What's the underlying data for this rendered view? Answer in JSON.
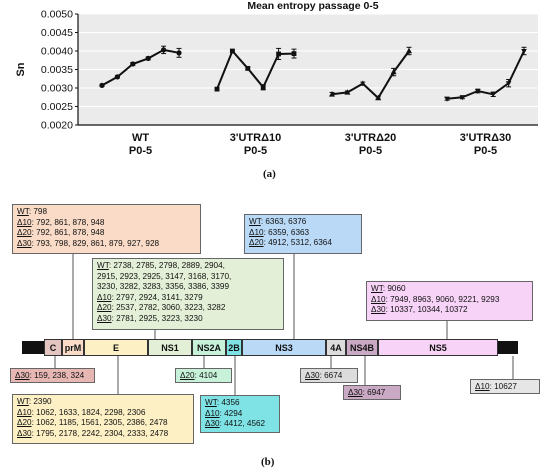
{
  "panel_a": {
    "caption": "(a)",
    "chart_data": {
      "type": "line",
      "title": "Mean entropy passage 0-5",
      "ylabel": "Sn",
      "xlabel": "",
      "ylim": [
        0.002,
        0.005
      ],
      "yticks": [
        "0.0020",
        "0.0025",
        "0.0030",
        "0.0035",
        "0.0040",
        "0.0045",
        "0.0050"
      ],
      "grid": true,
      "group_labels": [
        [
          "WT",
          "P0-5"
        ],
        [
          "3'UTRΔ10",
          "P0-5"
        ],
        [
          "3'UTRΔ20",
          "P0-5"
        ],
        [
          "3'UTRΔ30",
          "P0-5"
        ]
      ],
      "series": [
        {
          "name": "WT",
          "values": [
            0.00307,
            0.0033,
            0.00365,
            0.0038,
            0.00403,
            0.00395
          ],
          "err": [
            3e-05,
            3e-05,
            4e-05,
            4e-05,
            0.0001,
            0.00012
          ]
        },
        {
          "name": "3'UTRΔ10",
          "values": [
            0.00297,
            0.004,
            0.00353,
            0.00302,
            0.00392,
            0.00393
          ],
          "err": [
            3e-05,
            3e-05,
            4e-05,
            7e-05,
            0.00015,
            0.00012
          ]
        },
        {
          "name": "3'UTRΔ20",
          "values": [
            0.00283,
            0.00288,
            0.00312,
            0.00273,
            0.00343,
            0.004
          ],
          "err": [
            5e-05,
            4e-05,
            4e-05,
            3e-05,
            0.0001,
            0.0001
          ]
        },
        {
          "name": "3'UTRΔ30",
          "values": [
            0.00271,
            0.00275,
            0.00292,
            0.00283,
            0.00313,
            0.004
          ],
          "err": [
            4e-05,
            4e-05,
            5e-05,
            6e-05,
            0.0001,
            0.0001
          ]
        }
      ]
    }
  },
  "panel_b": {
    "caption": "(b)",
    "genome_segments": [
      "C",
      "prM",
      "E",
      "NS1",
      "NS2A",
      "2B",
      "NS3",
      "4A",
      "NS4B",
      "NS5"
    ],
    "boxes": {
      "box_prm": [
        [
          [
            "WT",
            ": 798"
          ]
        ],
        [
          [
            "Δ10",
            ": 792, 861, 878, 948"
          ]
        ],
        [
          [
            "Δ20",
            ": 792, 861, 878, 948"
          ]
        ],
        [
          [
            "Δ30",
            ": 793, 798, 829, 861, 879, 927, 928"
          ]
        ]
      ],
      "box_ns1": [
        [
          [
            "WT",
            ":  2738,  2785,  2798,  2889,  2904,"
          ]
        ],
        [
          [
            "",
            "2915,  2923,  2925,  3147,  3168,  3170,"
          ]
        ],
        [
          [
            "",
            "3230,  3282,  3283,  3356,  3386,  3399"
          ]
        ],
        [
          [
            "Δ10",
            ": 2797, 2924, 3141, 3279"
          ]
        ],
        [
          [
            "Δ20",
            ": 2537, 2782, 3060, 3223, 3282"
          ]
        ],
        [
          [
            "Δ30",
            ": 2781, 2925, 3223, 3230"
          ]
        ]
      ],
      "box_ns3": [
        [
          [
            "WT",
            ": 6363, 6376"
          ]
        ],
        [
          [
            "Δ10",
            ": 6359, 6363"
          ]
        ],
        [
          [
            "Δ20",
            ": 4912, 5312, 6364"
          ]
        ]
      ],
      "box_ns5": [
        [
          [
            "WT",
            ": 9060"
          ]
        ],
        [
          [
            "Δ10",
            ": 7949, 8963, 9060, 9221, 9293"
          ]
        ],
        [
          [
            "Δ30",
            ": 10337, 10344, 10372"
          ]
        ]
      ],
      "box_c": [
        [
          [
            "Δ30",
            ": 159, 238, 324"
          ]
        ]
      ],
      "box_e": [
        [
          [
            "WT",
            ": 2390"
          ]
        ],
        [
          [
            "Δ10",
            ": 1062, 1633, 1824, 2298, 2306"
          ]
        ],
        [
          [
            "Δ20",
            ": 1062, 1185, 1561, 2305, 2386, 2478"
          ]
        ],
        [
          [
            "Δ30",
            ": 1795, 2178, 2242, 2304, 2333, 2478"
          ]
        ]
      ],
      "box_ns2a": [
        [
          [
            "Δ20",
            ": 4104"
          ]
        ]
      ],
      "box_2b": [
        [
          [
            "WT",
            ": 4356"
          ]
        ],
        [
          [
            "Δ10",
            ": 4294"
          ]
        ],
        [
          [
            "Δ30",
            ": 4412, 4562"
          ]
        ]
      ],
      "box_4a": [
        [
          [
            "Δ30",
            ": 6674"
          ]
        ]
      ],
      "box_ns4b": [
        [
          [
            "Δ30",
            ": 6947"
          ]
        ]
      ],
      "box_utr": [
        [
          [
            "Δ10",
            ": 10627"
          ]
        ]
      ]
    },
    "colors": {
      "prm_box": "#f9dbc7",
      "ns1_box": "#e3efd6",
      "ns3_box": "#b9d9f7",
      "ns5_box": "#f7d3f7",
      "c_box": "#e7b7b3",
      "e_box": "#fdf0c5",
      "ns2a_box": "#c7f2d9",
      "2b_box": "#7fe3e5",
      "4a_box": "#dcdcdc",
      "ns4b_box": "#c9a9c4",
      "utr_box": "#e6e6e6",
      "seg_C": "#e3c4c0",
      "seg_prM": "#f9dbc7",
      "seg_E": "#fdf0c5",
      "seg_NS1": "#e3efd6",
      "seg_NS2A": "#c7f2d9",
      "seg_2B": "#7fe3e5",
      "seg_NS3": "#b9d9f7",
      "seg_4A": "#dcdcdc",
      "seg_NS4B": "#c9a9c4",
      "seg_NS5": "#f7d3f7"
    }
  }
}
